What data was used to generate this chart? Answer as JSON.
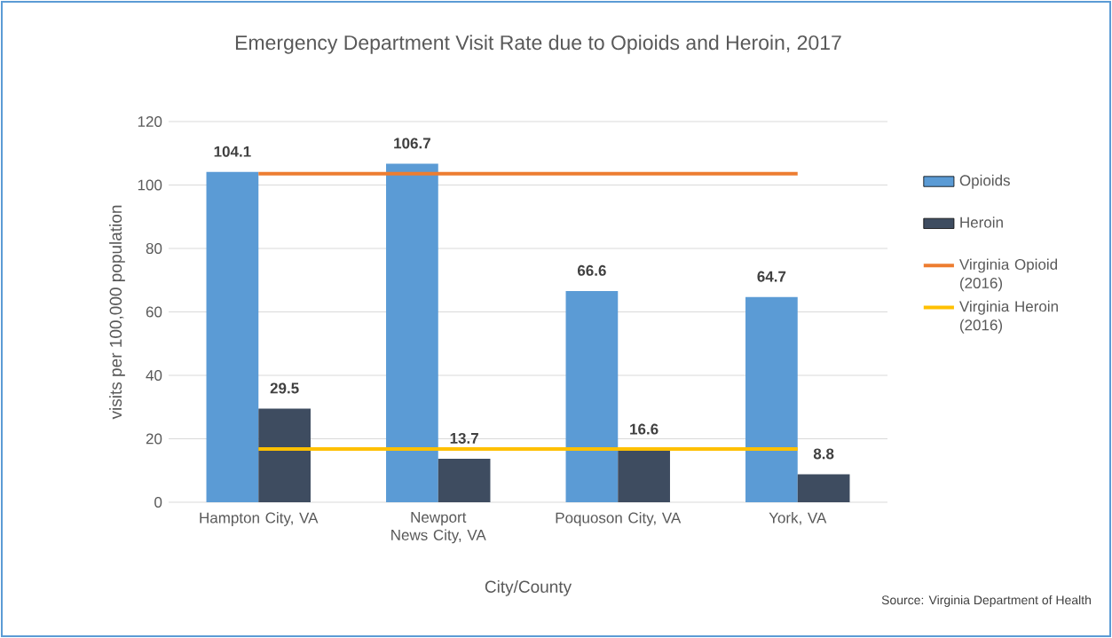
{
  "chart_data": {
    "type": "bar",
    "title": "Emergency Department Visit Rate due to Opioids and Heroin, 2017",
    "xlabel": "City/County",
    "ylabel": "visits per 100,000 population",
    "categories": [
      "Hampton City, VA",
      "Newport News City, VA",
      "Poquoson City, VA",
      "York, VA"
    ],
    "series": [
      {
        "name": "Opioids",
        "type": "bar",
        "color": "#5b9bd5",
        "values": [
          104.1,
          106.7,
          66.6,
          64.7
        ],
        "value_labels": [
          "104.1",
          "106.7",
          "66.6",
          "64.7"
        ]
      },
      {
        "name": "Heroin",
        "type": "bar",
        "color": "#3e4c60",
        "values": [
          29.5,
          13.7,
          16.6,
          8.8
        ],
        "value_labels": [
          "29.5",
          "13.7",
          "16.6",
          "8.8"
        ]
      },
      {
        "name": "Virginia Opioid (2016)",
        "type": "line",
        "color": "#ed7d31",
        "values": [
          103.6,
          103.6,
          103.6,
          103.6
        ]
      },
      {
        "name": "Virginia Heroin (2016)",
        "type": "line",
        "color": "#ffc000",
        "values": [
          16.8,
          16.8,
          16.8,
          16.8
        ]
      }
    ],
    "ylim": [
      0,
      120
    ],
    "yticks": [
      0,
      20,
      40,
      60,
      80,
      100,
      120
    ],
    "grid": "y",
    "legend": "right",
    "annotations": [
      "Source: Virginia Department of Health"
    ]
  }
}
